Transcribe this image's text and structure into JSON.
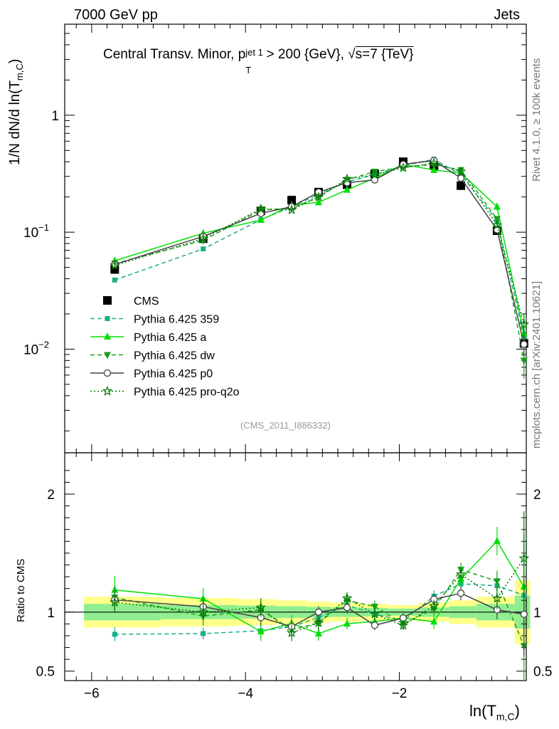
{
  "header": {
    "left": "7000 GeV pp",
    "right": "Jets"
  },
  "side_labels": {
    "rivet": "Rivet 4.1.0, ≥ 100k events",
    "mcplots": "mcplots.cern.ch [arXiv:2401.10621]"
  },
  "chart_data": {
    "type": "line",
    "title": "Central Transv. Minor, p_T^{jet 1} > 200 {GeV}, √s=7 {TeV}",
    "title_parts": {
      "prefix": "Central Transv. Minor, p",
      "sub": "T",
      "sup": "jet 1",
      "suffix": " > 200 {GeV}, ",
      "sqrt": "√",
      "s_text": "s=7 {TeV}"
    },
    "analysis_id": "(CMS_2011_I886332)",
    "xlabel": "ln(T",
    "xlabel_sub": "m,C",
    "xlabel_close": ")",
    "ylabel": "1/N    dN/d ln(T",
    "ylabel_sub": "m,C",
    "ylabel_close": ")",
    "ratio_ylabel": "Ratio to CMS",
    "xlim": [
      -6.35,
      -0.35
    ],
    "ylim": [
      0.0013,
      6.0
    ],
    "yscale": "log",
    "ratio_ylim": [
      0.42,
      2.35
    ],
    "x_ticks": [
      "−6",
      "−4",
      "−2"
    ],
    "x_tick_values": [
      -6,
      -4,
      -2
    ],
    "y_ticks": [
      {
        "value": 1,
        "base": "1",
        "exp": ""
      },
      {
        "value": 0.1,
        "base": "10",
        "exp": "−1"
      },
      {
        "value": 0.01,
        "base": "10",
        "exp": "−2"
      }
    ],
    "ratio_ticks": [
      {
        "value": 2,
        "label": "2"
      },
      {
        "value": 1,
        "label": "1"
      },
      {
        "value": 0.5,
        "label": "0.5"
      }
    ],
    "x": [
      -5.7,
      -4.55,
      -3.8,
      -3.4,
      -3.05,
      -2.68,
      -2.32,
      -1.95,
      -1.55,
      -1.2,
      -0.73,
      -0.38
    ],
    "bins": [
      -6.1,
      -5.1,
      -4.1,
      -3.6,
      -3.2,
      -2.9,
      -2.5,
      -2.15,
      -1.75,
      -1.35,
      -1.0,
      -0.5,
      -0.3
    ],
    "band_yellow": [
      0.13,
      0.12,
      0.11,
      0.1,
      0.09,
      0.08,
      0.07,
      0.06,
      0.08,
      0.1,
      0.13,
      0.27
    ],
    "band_green": [
      0.07,
      0.06,
      0.055,
      0.05,
      0.045,
      0.04,
      0.035,
      0.03,
      0.04,
      0.05,
      0.07,
      0.14
    ],
    "series": [
      {
        "name": "CMS",
        "color": "#000000",
        "marker": "square",
        "line": "none",
        "values": [
          0.048,
          0.088,
          0.152,
          0.188,
          0.22,
          0.255,
          0.315,
          0.4,
          0.37,
          0.25,
          0.103,
          0.0112
        ],
        "errors": [
          0.004,
          0.005,
          0.006,
          0.007,
          0.008,
          0.009,
          0.01,
          0.012,
          0.012,
          0.01,
          0.005,
          0.0008
        ]
      },
      {
        "name": "Pythia 6.425 359",
        "color": "#1aaf8a",
        "marker": "square-small",
        "line": "dashed",
        "values": [
          0.039,
          0.072,
          0.128,
          0.165,
          0.21,
          0.27,
          0.31,
          0.37,
          0.42,
          0.31,
          0.126,
          0.0128
        ],
        "ratio_err": [
          0.06,
          0.05,
          0.06,
          0.06,
          0.05,
          0.05,
          0.04,
          0.04,
          0.05,
          0.06,
          0.08,
          0.35
        ]
      },
      {
        "name": "Pythia 6.425 a",
        "color": "#00e000",
        "marker": "triangle-up",
        "line": "solid",
        "values": [
          0.057,
          0.098,
          0.127,
          0.17,
          0.18,
          0.23,
          0.29,
          0.38,
          0.34,
          0.32,
          0.165,
          0.0136
        ],
        "ratio_err": [
          0.12,
          0.09,
          0.08,
          0.07,
          0.06,
          0.05,
          0.05,
          0.04,
          0.06,
          0.07,
          0.12,
          0.45
        ]
      },
      {
        "name": "Pythia 6.425 dw",
        "color": "#1a9f1a",
        "marker": "triangle-down",
        "line": "dashed",
        "values": [
          0.054,
          0.085,
          0.155,
          0.16,
          0.2,
          0.28,
          0.33,
          0.36,
          0.38,
          0.34,
          0.13,
          0.008
        ],
        "ratio_err": [
          0.1,
          0.08,
          0.08,
          0.07,
          0.06,
          0.05,
          0.05,
          0.04,
          0.05,
          0.06,
          0.09,
          0.5
        ]
      },
      {
        "name": "Pythia 6.425 p0",
        "color": "#444444",
        "marker": "circle-open",
        "line": "solid",
        "values": [
          0.053,
          0.092,
          0.145,
          0.165,
          0.22,
          0.265,
          0.28,
          0.38,
          0.41,
          0.29,
          0.105,
          0.011
        ],
        "ratio_err": [
          0.08,
          0.07,
          0.07,
          0.06,
          0.05,
          0.05,
          0.04,
          0.04,
          0.05,
          0.06,
          0.08,
          0.35
        ]
      },
      {
        "name": "Pythia 6.425 pro-q2o",
        "color": "#007a00",
        "marker": "star-open",
        "line": "dotted",
        "values": [
          0.052,
          0.088,
          0.158,
          0.155,
          0.2,
          0.285,
          0.31,
          0.355,
          0.39,
          0.33,
          0.115,
          0.0163
        ],
        "ratio_err": [
          0.08,
          0.07,
          0.08,
          0.07,
          0.06,
          0.05,
          0.05,
          0.04,
          0.05,
          0.06,
          0.09,
          0.4
        ]
      }
    ]
  }
}
